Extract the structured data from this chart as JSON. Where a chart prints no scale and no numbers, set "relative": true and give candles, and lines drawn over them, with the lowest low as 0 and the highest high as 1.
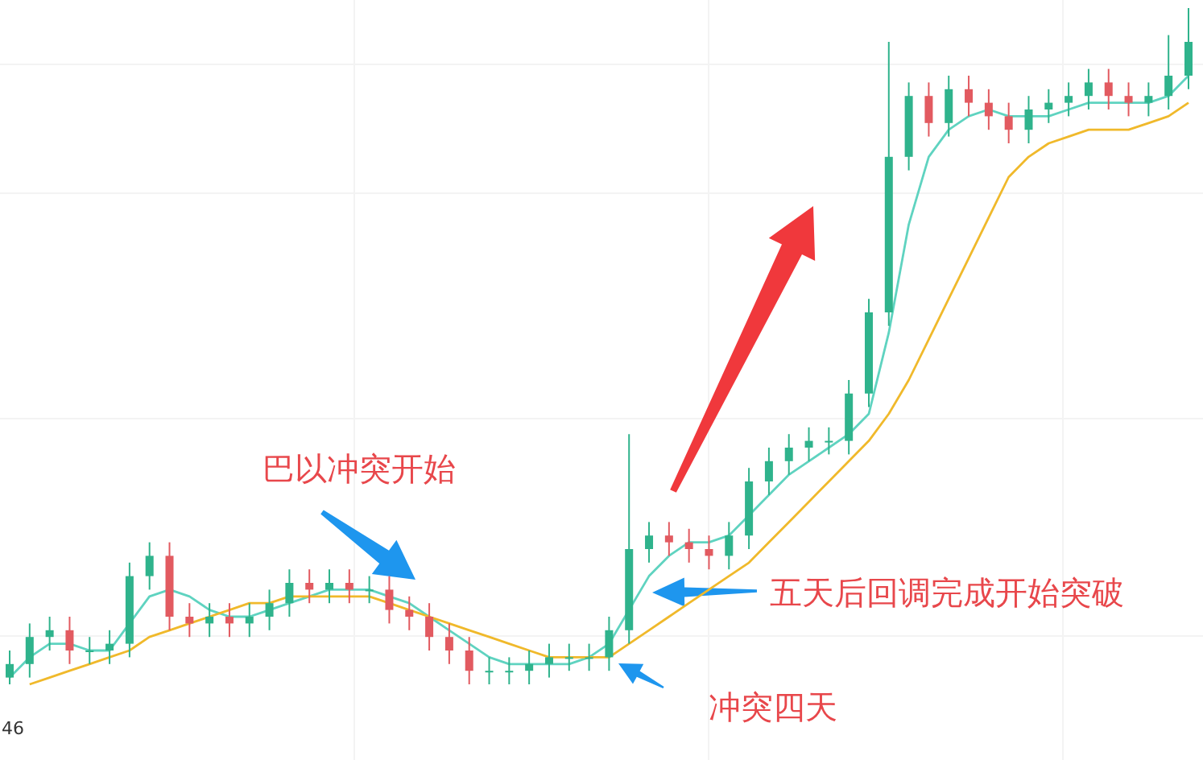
{
  "chart_data": {
    "type": "candlestick",
    "relative": true,
    "categories": [
      null,
      null,
      null,
      null,
      null,
      null,
      null,
      null,
      null,
      null,
      null,
      null,
      null,
      null,
      null,
      null,
      null,
      null,
      null,
      null,
      null,
      null,
      null,
      null,
      null,
      null,
      null,
      null,
      null,
      null,
      null,
      null,
      null,
      null,
      null,
      null,
      null,
      null,
      null,
      null,
      null,
      null,
      null,
      null,
      null,
      null,
      null,
      null,
      null,
      null,
      null,
      null,
      null,
      null,
      null,
      null,
      null,
      null,
      null,
      null
    ],
    "ohlc": [
      [
        0.01,
        0.05,
        0.0,
        0.03
      ],
      [
        0.03,
        0.09,
        0.01,
        0.07
      ],
      [
        0.07,
        0.1,
        0.05,
        0.08
      ],
      [
        0.08,
        0.1,
        0.03,
        0.05
      ],
      [
        0.05,
        0.07,
        0.03,
        0.05
      ],
      [
        0.05,
        0.08,
        0.03,
        0.06
      ],
      [
        0.06,
        0.18,
        0.04,
        0.16
      ],
      [
        0.16,
        0.21,
        0.14,
        0.19
      ],
      [
        0.19,
        0.21,
        0.08,
        0.1
      ],
      [
        0.1,
        0.12,
        0.07,
        0.09
      ],
      [
        0.09,
        0.12,
        0.07,
        0.1
      ],
      [
        0.1,
        0.12,
        0.07,
        0.09
      ],
      [
        0.09,
        0.12,
        0.07,
        0.1
      ],
      [
        0.1,
        0.14,
        0.08,
        0.12
      ],
      [
        0.12,
        0.17,
        0.1,
        0.15
      ],
      [
        0.15,
        0.17,
        0.12,
        0.14
      ],
      [
        0.14,
        0.17,
        0.12,
        0.15
      ],
      [
        0.15,
        0.17,
        0.12,
        0.14
      ],
      [
        0.14,
        0.16,
        0.12,
        0.14
      ],
      [
        0.14,
        0.16,
        0.09,
        0.11
      ],
      [
        0.11,
        0.13,
        0.08,
        0.1
      ],
      [
        0.1,
        0.12,
        0.05,
        0.07
      ],
      [
        0.07,
        0.09,
        0.03,
        0.05
      ],
      [
        0.05,
        0.07,
        0.0,
        0.02
      ],
      [
        0.02,
        0.04,
        0.0,
        0.02
      ],
      [
        0.02,
        0.04,
        0.0,
        0.02
      ],
      [
        0.02,
        0.05,
        0.0,
        0.03
      ],
      [
        0.03,
        0.06,
        0.01,
        0.04
      ],
      [
        0.04,
        0.06,
        0.02,
        0.04
      ],
      [
        0.04,
        0.06,
        0.02,
        0.04
      ],
      [
        0.04,
        0.1,
        0.02,
        0.08
      ],
      [
        0.08,
        0.37,
        0.06,
        0.2
      ],
      [
        0.2,
        0.24,
        0.18,
        0.22
      ],
      [
        0.22,
        0.24,
        0.19,
        0.21
      ],
      [
        0.21,
        0.23,
        0.18,
        0.2
      ],
      [
        0.2,
        0.22,
        0.17,
        0.19
      ],
      [
        0.19,
        0.24,
        0.17,
        0.22
      ],
      [
        0.22,
        0.32,
        0.2,
        0.3
      ],
      [
        0.3,
        0.35,
        0.28,
        0.33
      ],
      [
        0.33,
        0.37,
        0.31,
        0.35
      ],
      [
        0.35,
        0.38,
        0.33,
        0.36
      ],
      [
        0.36,
        0.38,
        0.34,
        0.36
      ],
      [
        0.36,
        0.45,
        0.34,
        0.43
      ],
      [
        0.43,
        0.57,
        0.41,
        0.55
      ],
      [
        0.55,
        0.95,
        0.53,
        0.78
      ],
      [
        0.78,
        0.89,
        0.76,
        0.87
      ],
      [
        0.87,
        0.89,
        0.81,
        0.83
      ],
      [
        0.83,
        0.9,
        0.81,
        0.88
      ],
      [
        0.88,
        0.9,
        0.84,
        0.86
      ],
      [
        0.86,
        0.88,
        0.82,
        0.84
      ],
      [
        0.84,
        0.86,
        0.8,
        0.82
      ],
      [
        0.82,
        0.87,
        0.8,
        0.85
      ],
      [
        0.85,
        0.88,
        0.83,
        0.86
      ],
      [
        0.86,
        0.89,
        0.84,
        0.87
      ],
      [
        0.87,
        0.91,
        0.85,
        0.89
      ],
      [
        0.89,
        0.91,
        0.85,
        0.87
      ],
      [
        0.87,
        0.89,
        0.84,
        0.86
      ],
      [
        0.86,
        0.89,
        0.84,
        0.87
      ],
      [
        0.87,
        0.96,
        0.85,
        0.9
      ],
      [
        0.9,
        1.0,
        0.88,
        0.95
      ]
    ],
    "colors": [
      "#2fb38c",
      "#2fb38c",
      "#2fb38c",
      "#e25a60",
      "#2fb38c",
      "#2fb38c",
      "#2fb38c",
      "#2fb38c",
      "#e25a60",
      "#e25a60",
      "#2fb38c",
      "#e25a60",
      "#2fb38c",
      "#2fb38c",
      "#2fb38c",
      "#e25a60",
      "#2fb38c",
      "#e25a60",
      "#2fb38c",
      "#e25a60",
      "#e25a60",
      "#e25a60",
      "#e25a60",
      "#e25a60",
      "#2fb38c",
      "#2fb38c",
      "#2fb38c",
      "#2fb38c",
      "#2fb38c",
      "#2fb38c",
      "#2fb38c",
      "#2fb38c",
      "#2fb38c",
      "#e25a60",
      "#e25a60",
      "#e25a60",
      "#2fb38c",
      "#2fb38c",
      "#2fb38c",
      "#2fb38c",
      "#2fb38c",
      "#2fb38c",
      "#2fb38c",
      "#2fb38c",
      "#2fb38c",
      "#2fb38c",
      "#e25a60",
      "#2fb38c",
      "#e25a60",
      "#e25a60",
      "#e25a60",
      "#2fb38c",
      "#2fb38c",
      "#2fb38c",
      "#2fb38c",
      "#e25a60",
      "#e25a60",
      "#2fb38c",
      "#2fb38c",
      "#2fb38c"
    ],
    "series": [
      {
        "type": "line",
        "color": "#5fd3c0",
        "values": [
          0.01,
          0.04,
          0.06,
          0.06,
          0.05,
          0.05,
          0.09,
          0.13,
          0.14,
          0.13,
          0.11,
          0.1,
          0.1,
          0.11,
          0.12,
          0.13,
          0.14,
          0.14,
          0.14,
          0.13,
          0.12,
          0.1,
          0.08,
          0.06,
          0.04,
          0.03,
          0.03,
          0.03,
          0.03,
          0.04,
          0.06,
          0.11,
          0.16,
          0.19,
          0.21,
          0.21,
          0.22,
          0.25,
          0.28,
          0.31,
          0.33,
          0.35,
          0.37,
          0.4,
          0.52,
          0.68,
          0.78,
          0.82,
          0.84,
          0.85,
          0.84,
          0.84,
          0.84,
          0.85,
          0.86,
          0.86,
          0.86,
          0.86,
          0.87,
          0.9
        ]
      },
      {
        "type": "line",
        "color": "#f0b92b",
        "values": [
          null,
          0.0,
          0.01,
          0.02,
          0.03,
          0.04,
          0.05,
          0.07,
          0.08,
          0.09,
          0.1,
          0.11,
          0.12,
          0.12,
          0.13,
          0.13,
          0.13,
          0.13,
          0.13,
          0.12,
          0.11,
          0.1,
          0.09,
          0.08,
          0.07,
          0.06,
          0.05,
          0.04,
          0.04,
          0.04,
          0.04,
          0.06,
          0.08,
          0.1,
          0.12,
          0.14,
          0.16,
          0.18,
          0.21,
          0.24,
          0.27,
          0.3,
          0.33,
          0.36,
          0.4,
          0.45,
          0.51,
          0.57,
          0.63,
          0.69,
          0.75,
          0.78,
          0.8,
          0.81,
          0.82,
          0.82,
          0.82,
          0.83,
          0.84,
          0.86
        ]
      }
    ],
    "annotations": [
      "巴以冲突开始",
      "五天后回调完成开始突破",
      "冲突四天",
      "46"
    ]
  }
}
